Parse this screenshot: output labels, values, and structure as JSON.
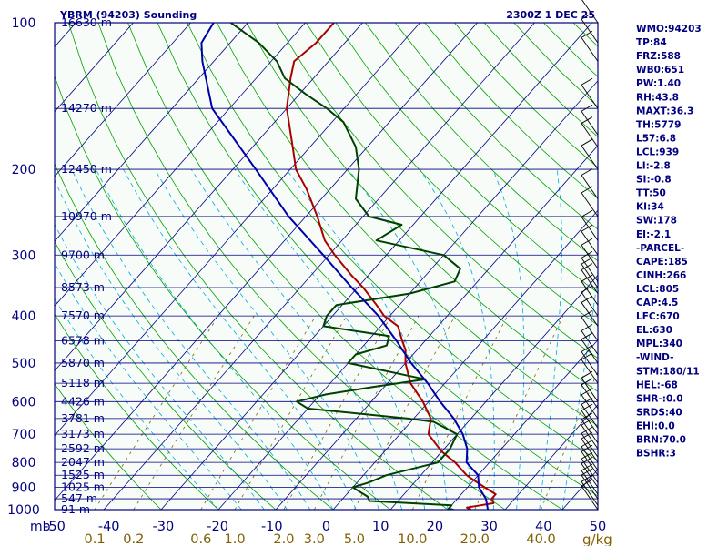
{
  "header": {
    "title": "YBRM (94203) Sounding",
    "time": "2300Z  1 DEC 25"
  },
  "chart_data": {
    "type": "line",
    "title": "YBRM (94203) Sounding",
    "subtitle": "2300Z  1 DEC 25",
    "x_unit": "mb",
    "mixing_ratio_unit": "g/kg",
    "xlim": [
      -50,
      50
    ],
    "pressure_range": [
      1000,
      100
    ],
    "pressure_ticks": [
      100,
      200,
      300,
      400,
      500,
      600,
      700,
      800,
      900,
      1000
    ],
    "temperature_ticks": [
      -50,
      -40,
      -30,
      -20,
      -10,
      0,
      10,
      20,
      30,
      40,
      50
    ],
    "temperature_tick_labels": [
      "-50",
      "-40",
      "-30",
      "-20",
      "-10",
      "0",
      "10",
      "20",
      "30",
      "40",
      "50"
    ],
    "mixing_ratio_ticks": [
      0.1,
      0.2,
      0.6,
      1.0,
      2.0,
      3.0,
      5.0,
      10.0,
      20.0,
      40.0
    ],
    "mixing_ratio_tick_labels": [
      "0.1",
      "0.2",
      "0.6",
      "1.0",
      "2.0",
      "3.0",
      "5.0",
      "10.0",
      "20.0",
      "40.0"
    ],
    "height_levels": [
      {
        "p": 100,
        "label": "16630 m"
      },
      {
        "p": 150,
        "label": "14270 m"
      },
      {
        "p": 200,
        "label": "12450 m"
      },
      {
        "p": 250,
        "label": "10970 m"
      },
      {
        "p": 300,
        "label": "9700 m"
      },
      {
        "p": 350,
        "label": "8573 m"
      },
      {
        "p": 400,
        "label": "7570 m"
      },
      {
        "p": 450,
        "label": "6578 m"
      },
      {
        "p": 500,
        "label": "5870 m"
      },
      {
        "p": 550,
        "label": "5118 m"
      },
      {
        "p": 600,
        "label": "4426 m"
      },
      {
        "p": 650,
        "label": "3781 m"
      },
      {
        "p": 700,
        "label": "3173 m"
      },
      {
        "p": 750,
        "label": "2592 m"
      },
      {
        "p": 800,
        "label": "2047 m"
      },
      {
        "p": 850,
        "label": "1525 m"
      },
      {
        "p": 900,
        "label": "1025 m"
      },
      {
        "p": 950,
        "label": "547 m"
      },
      {
        "p": 1000,
        "label": "91 m"
      }
    ],
    "series": [
      {
        "key": "temperature",
        "color": "#aa0000",
        "points": [
          [
            1000,
            24
          ],
          [
            990,
            23
          ],
          [
            980,
            25
          ],
          [
            970,
            27
          ],
          [
            950,
            26
          ],
          [
            930,
            26
          ],
          [
            900,
            23
          ],
          [
            860,
            19
          ],
          [
            850,
            18
          ],
          [
            800,
            14
          ],
          [
            760,
            10
          ],
          [
            700,
            5
          ],
          [
            650,
            3
          ],
          [
            600,
            -1
          ],
          [
            550,
            -6
          ],
          [
            500,
            -10
          ],
          [
            470,
            -12
          ],
          [
            450,
            -14
          ],
          [
            420,
            -17
          ],
          [
            400,
            -21
          ],
          [
            380,
            -24
          ],
          [
            350,
            -29
          ],
          [
            330,
            -33
          ],
          [
            300,
            -39
          ],
          [
            280,
            -43
          ],
          [
            250,
            -48
          ],
          [
            220,
            -54
          ],
          [
            200,
            -59
          ],
          [
            180,
            -63
          ],
          [
            150,
            -70
          ],
          [
            130,
            -74
          ],
          [
            120,
            -76
          ],
          [
            110,
            -75
          ],
          [
            100,
            -75
          ]
        ]
      },
      {
        "key": "dewpoint",
        "color": "#004000",
        "points": [
          [
            1000,
            21
          ],
          [
            995,
            20
          ],
          [
            980,
            20
          ],
          [
            960,
            5
          ],
          [
            940,
            4
          ],
          [
            920,
            2
          ],
          [
            900,
            0
          ],
          [
            880,
            2
          ],
          [
            850,
            4
          ],
          [
            800,
            11
          ],
          [
            750,
            11
          ],
          [
            700,
            10
          ],
          [
            660,
            4
          ],
          [
            650,
            -1
          ],
          [
            620,
            -20
          ],
          [
            600,
            -23
          ],
          [
            580,
            -19
          ],
          [
            560,
            -12
          ],
          [
            540,
            -4
          ],
          [
            500,
            -20
          ],
          [
            480,
            -20
          ],
          [
            460,
            -16
          ],
          [
            440,
            -17
          ],
          [
            420,
            -30
          ],
          [
            400,
            -31
          ],
          [
            380,
            -31
          ],
          [
            360,
            -20
          ],
          [
            340,
            -14
          ],
          [
            320,
            -15
          ],
          [
            300,
            -20
          ],
          [
            280,
            -34
          ],
          [
            260,
            -32
          ],
          [
            250,
            -39
          ],
          [
            230,
            -44
          ],
          [
            200,
            -48
          ],
          [
            180,
            -52
          ],
          [
            160,
            -58
          ],
          [
            150,
            -63
          ],
          [
            140,
            -69
          ],
          [
            130,
            -75
          ],
          [
            120,
            -79
          ],
          [
            110,
            -85
          ],
          [
            100,
            -93
          ]
        ]
      },
      {
        "key": "parcel",
        "color": "#0000aa",
        "points": [
          [
            1000,
            27
          ],
          [
            950,
            25
          ],
          [
            900,
            22
          ],
          [
            850,
            20
          ],
          [
            800,
            16
          ],
          [
            750,
            14
          ],
          [
            700,
            11
          ],
          [
            650,
            7
          ],
          [
            600,
            2
          ],
          [
            550,
            -3
          ],
          [
            500,
            -9
          ],
          [
            450,
            -15
          ],
          [
            400,
            -22
          ],
          [
            350,
            -31
          ],
          [
            300,
            -41
          ],
          [
            250,
            -53
          ],
          [
            200,
            -66
          ],
          [
            150,
            -83
          ],
          [
            120,
            -92
          ],
          [
            110,
            -95
          ],
          [
            100,
            -96
          ]
        ]
      }
    ],
    "grid": true
  },
  "indices": [
    "WMO:94203",
    "TP:84",
    "FRZ:588",
    "WB0:651",
    "PW:1.40",
    "RH:43.8",
    "MAXT:36.3",
    "TH:5779",
    "L57:6.8",
    "LCL:939",
    "LI:-2.8",
    "SI:-0.8",
    "TT:50",
    "KI:34",
    "SW:178",
    "EI:-2.1",
    "-PARCEL-",
    "CAPE:185",
    "CINH:266",
    "LCL:805",
    "CAP:4.5",
    "LFC:670",
    "EL:630",
    "MPL:340",
    "-WIND-",
    "STM:180/11",
    "HEL:-68",
    "SHR-:0.0",
    "SRDS:40",
    "EHI:0.0",
    "BRN:70.0",
    "BSHR:3"
  ],
  "colors": {
    "frame": "#000080",
    "isotherm": "#000080",
    "dry_adiabat": "#00a000",
    "moist_adiabat": "#00aadd",
    "mixing_ratio": "#806000",
    "barbs": "#000000",
    "plot_background": "#f8fcf8"
  }
}
